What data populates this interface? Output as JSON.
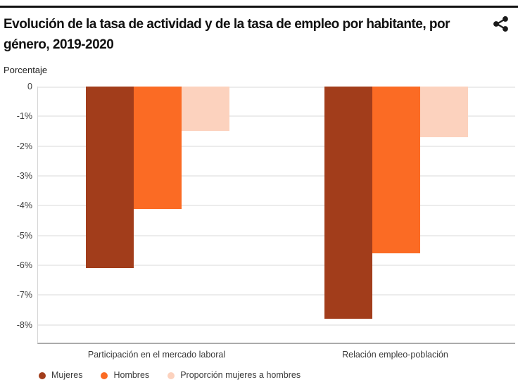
{
  "header": {
    "title": "Evolución de la tasa de actividad y de la tasa de empleo por habitante, por género, 2019-2020"
  },
  "share": {
    "icon": "share-icon",
    "color": "#1A1A1A"
  },
  "chart_data": {
    "type": "bar",
    "title": "Evolución de la tasa de actividad y de la tasa de empleo por habitante, por género, 2019-2020",
    "ylabel": "Porcentaje",
    "xlabel": "",
    "categories": [
      "Participación en el mercado laboral",
      "Relación empleo-población"
    ],
    "series": [
      {
        "name": "Mujeres",
        "color": "#A23D1B",
        "values": [
          -6.1,
          -7.8
        ]
      },
      {
        "name": "Hombres",
        "color": "#FB6B24",
        "values": [
          -4.1,
          -5.6
        ]
      },
      {
        "name": "Proporción mujeres a hombres",
        "color": "#FCD2BE",
        "values": [
          -1.5,
          -1.7
        ]
      }
    ],
    "y_ticks": [
      "0",
      "-1%",
      "-2%",
      "-3%",
      "-4%",
      "-5%",
      "-6%",
      "-7%",
      "-8%"
    ],
    "y_tick_values": [
      0,
      -1,
      -2,
      -3,
      -4,
      -5,
      -6,
      -7,
      -8
    ],
    "ylim": [
      0,
      -8.6
    ],
    "grid": true,
    "legend_position": "bottom",
    "colors": {
      "gridline": "#ECECEC",
      "axis_left": "#D6D6D6",
      "axis_bottom": "#ABABAB",
      "tick_text": "#3D3D3D"
    }
  }
}
